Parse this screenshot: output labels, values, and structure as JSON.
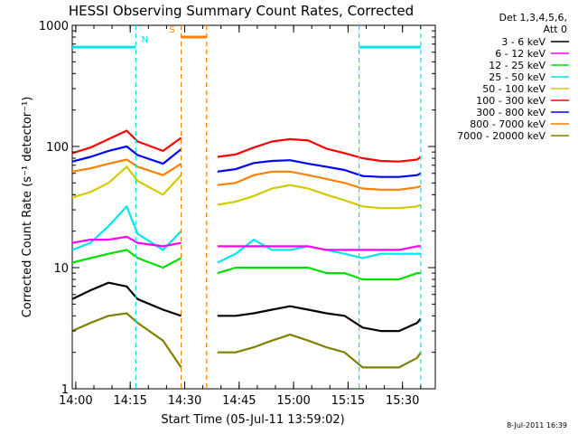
{
  "chart_data": {
    "type": "line",
    "title": "HESSI Observing Summary Count Rates, Corrected",
    "ylabel": "Corrected Count Rate (s⁻¹ detector⁻¹)",
    "xlabel": "Start Time (05-Jul-11 13:59:02)",
    "y_scale": "log",
    "ylim": [
      1,
      1000
    ],
    "y_tick_labels": [
      "1",
      "10",
      "100",
      "1000"
    ],
    "x_tick_labels": [
      "14:00",
      "14:15",
      "14:30",
      "14:45",
      "15:00",
      "15:15",
      "15:30"
    ],
    "x_range_minutes": [
      0,
      100
    ],
    "legend": {
      "position": "right",
      "header": [
        "Det 1,3,4,5,6,",
        "Att 0"
      ],
      "entries": [
        {
          "label": "3 - 6 keV",
          "color": "#000000"
        },
        {
          "label": "6 - 12 keV",
          "color": "#ff00ff"
        },
        {
          "label": "12 - 25 keV",
          "color": "#00e000"
        },
        {
          "label": "25 - 50 keV",
          "color": "#00e5ee"
        },
        {
          "label": "50 - 100 keV",
          "color": "#d4c800"
        },
        {
          "label": "100 - 300 keV",
          "color": "#ff0000"
        },
        {
          "label": "300 - 800 keV",
          "color": "#0000ff"
        },
        {
          "label": "800 - 7000 keV",
          "color": "#ff7f00"
        },
        {
          "label": "7000 - 20000 keV",
          "color": "#808000"
        }
      ]
    },
    "flags": [
      {
        "label": "N",
        "color": "#00e5ee",
        "y": 660,
        "segments": [
          [
            0,
            17.5
          ],
          [
            79,
            96
          ]
        ],
        "boundaries": [
          17.5,
          79,
          96
        ]
      },
      {
        "label": "S",
        "color": "#ff7f00",
        "y": 800,
        "segments": [
          [
            30,
            37
          ]
        ],
        "boundaries": [
          30,
          37
        ]
      }
    ],
    "series": [
      {
        "name": "100 - 300 keV",
        "color": "#ff0000",
        "x": [
          0,
          5,
          10,
          15,
          18,
          25,
          30,
          40,
          45,
          50,
          55,
          60,
          65,
          70,
          75,
          80,
          85,
          90,
          95,
          96
        ],
        "y": [
          88,
          98,
          115,
          135,
          110,
          92,
          118,
          82,
          86,
          98,
          110,
          115,
          112,
          96,
          88,
          80,
          76,
          75,
          78,
          82
        ]
      },
      {
        "name": "300 - 800 keV",
        "color": "#0000ff",
        "x": [
          0,
          5,
          10,
          15,
          18,
          25,
          30,
          40,
          45,
          50,
          55,
          60,
          65,
          70,
          75,
          80,
          85,
          90,
          95,
          96
        ],
        "y": [
          75,
          82,
          92,
          100,
          85,
          72,
          95,
          62,
          65,
          73,
          76,
          77,
          72,
          68,
          64,
          57,
          56,
          56,
          58,
          60
        ]
      },
      {
        "name": "800 - 7000 keV",
        "color": "#ff7f00",
        "x": [
          0,
          5,
          10,
          15,
          18,
          25,
          30,
          40,
          45,
          50,
          55,
          60,
          65,
          70,
          75,
          80,
          85,
          90,
          95,
          96
        ],
        "y": [
          62,
          66,
          72,
          78,
          68,
          58,
          72,
          48,
          50,
          58,
          62,
          62,
          58,
          54,
          50,
          45,
          44,
          44,
          46,
          47
        ]
      },
      {
        "name": "50 - 100 keV",
        "color": "#d4c800",
        "x": [
          0,
          5,
          10,
          15,
          18,
          25,
          30,
          40,
          45,
          50,
          55,
          60,
          65,
          70,
          75,
          80,
          85,
          90,
          95,
          96
        ],
        "y": [
          38,
          42,
          50,
          68,
          52,
          40,
          58,
          33,
          35,
          39,
          45,
          48,
          45,
          40,
          36,
          32,
          31,
          31,
          32,
          33
        ]
      },
      {
        "name": "25 - 50 keV",
        "color": "#00e5ee",
        "x": [
          0,
          5,
          10,
          15,
          18,
          25,
          30,
          40,
          45,
          50,
          55,
          60,
          65,
          70,
          75,
          80,
          85,
          90,
          95,
          96
        ],
        "y": [
          14,
          16,
          22,
          32,
          19,
          14,
          20,
          11,
          13,
          17,
          14,
          14,
          15,
          14,
          13,
          12,
          13,
          13,
          13,
          13
        ]
      },
      {
        "name": "6 - 12 keV",
        "color": "#ff00ff",
        "x": [
          0,
          5,
          10,
          15,
          18,
          25,
          30,
          40,
          45,
          50,
          55,
          60,
          65,
          70,
          75,
          80,
          85,
          90,
          95,
          96
        ],
        "y": [
          16,
          17,
          17,
          18,
          16,
          15,
          16,
          15,
          15,
          15,
          15,
          15,
          15,
          14,
          14,
          14,
          14,
          14,
          15,
          15
        ]
      },
      {
        "name": "12 - 25 keV",
        "color": "#00e000",
        "x": [
          0,
          5,
          10,
          15,
          18,
          25,
          30,
          40,
          45,
          50,
          55,
          60,
          65,
          70,
          75,
          80,
          85,
          90,
          95,
          96
        ],
        "y": [
          11,
          12,
          13,
          14,
          12,
          10,
          12,
          9,
          10,
          10,
          10,
          10,
          10,
          9,
          9,
          8,
          8,
          8,
          9,
          9
        ]
      },
      {
        "name": "3 - 6 keV",
        "color": "#000000",
        "x": [
          0,
          5,
          10,
          15,
          18,
          25,
          30,
          40,
          45,
          50,
          55,
          60,
          65,
          70,
          75,
          80,
          85,
          90,
          95,
          96
        ],
        "y": [
          5.5,
          6.5,
          7.5,
          7,
          5.5,
          4.5,
          4,
          4,
          4,
          4.2,
          4.5,
          4.8,
          4.5,
          4.2,
          4,
          3.2,
          3,
          3,
          3.5,
          3.8
        ]
      },
      {
        "name": "7000 - 20000 keV",
        "color": "#808000",
        "x": [
          0,
          5,
          10,
          15,
          18,
          25,
          30,
          40,
          45,
          50,
          55,
          60,
          65,
          70,
          75,
          80,
          85,
          90,
          95,
          96
        ],
        "y": [
          3,
          3.5,
          4,
          4.2,
          3.5,
          2.5,
          1.5,
          2,
          2,
          2.2,
          2.5,
          2.8,
          2.5,
          2.2,
          2,
          1.5,
          1.5,
          1.5,
          1.8,
          2
        ]
      }
    ]
  },
  "timestamp": "8-Jul-2011 16:39"
}
